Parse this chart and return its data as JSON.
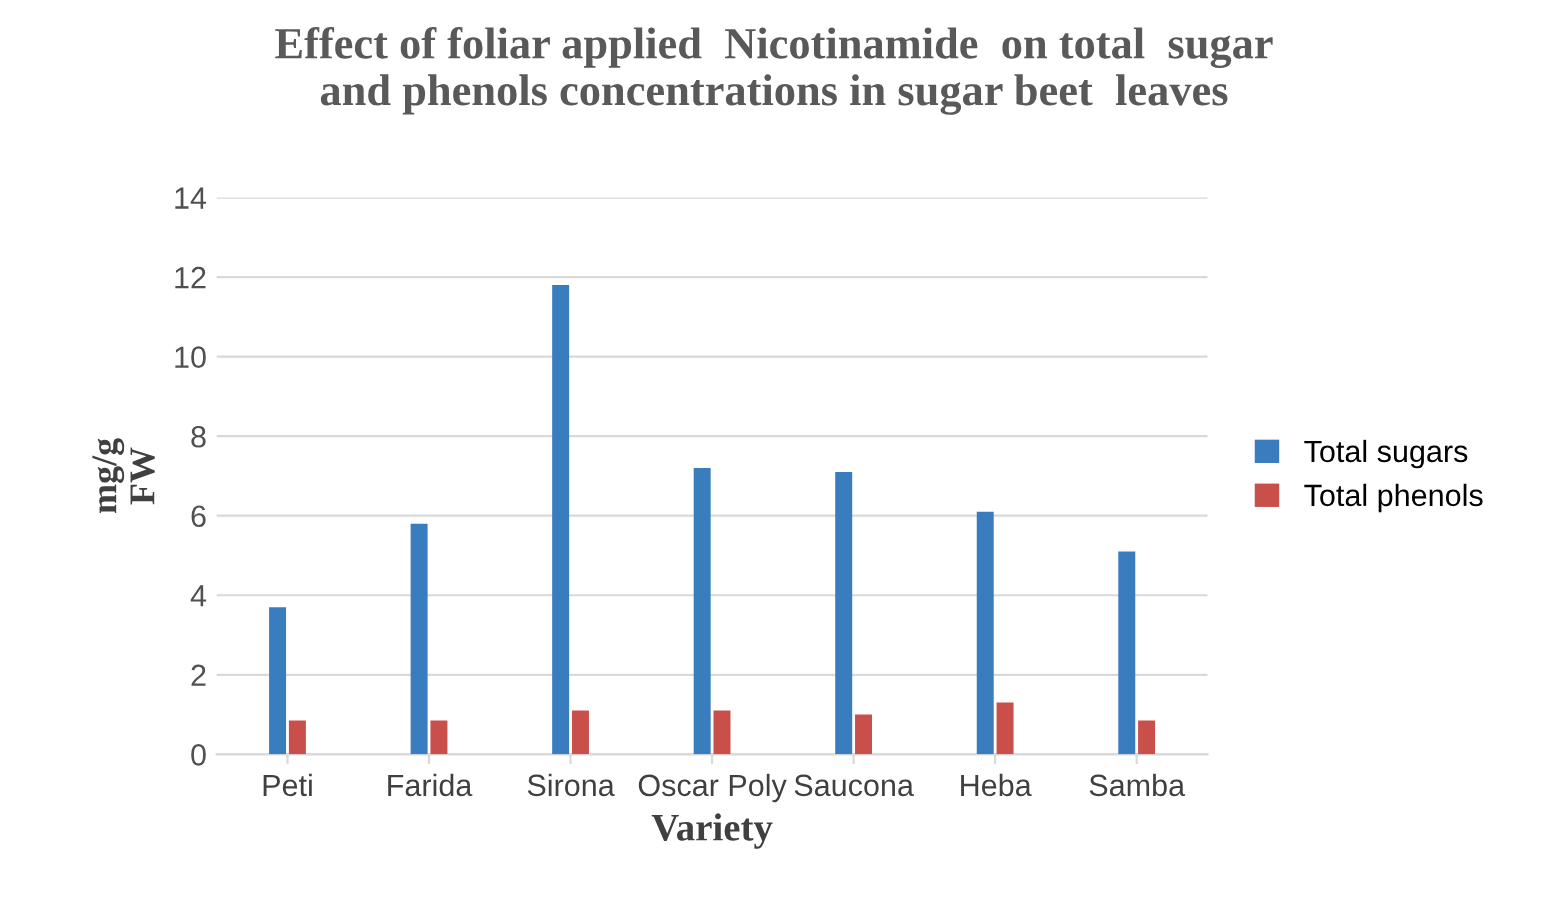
{
  "chart_data": {
    "type": "bar",
    "title": "Effect of foliar applied  Nicotinamide  on total  sugar\nand phenols concentrations in sugar beet  leaves",
    "xlabel": "Variety",
    "ylabel": "mg/g\nFW",
    "categories": [
      "Peti",
      "Farida",
      "Sirona",
      "Oscar Poly",
      "Saucona",
      "Heba",
      "Samba"
    ],
    "series": [
      {
        "name": "Total sugars",
        "color": "#3a7dbf",
        "values": [
          3.7,
          5.8,
          11.8,
          7.2,
          7.1,
          6.1,
          5.1
        ]
      },
      {
        "name": "Total phenols",
        "color": "#c9504a",
        "values": [
          0.85,
          0.85,
          1.1,
          1.1,
          1.0,
          1.3,
          0.85
        ]
      }
    ],
    "ylim": [
      0,
      14
    ],
    "yticks": [
      0,
      2,
      4,
      6,
      8,
      10,
      12,
      14
    ],
    "grid": "y",
    "legend": "right"
  }
}
